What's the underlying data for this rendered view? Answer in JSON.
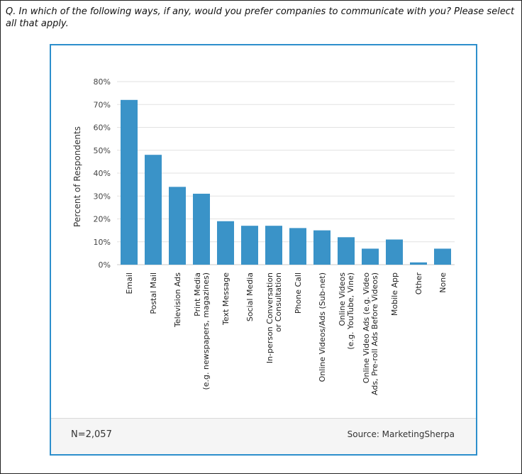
{
  "question": "Q. In which of the following ways, if any, would you prefer companies to communicate with you? Please select all that apply.",
  "footer": {
    "sample": "N=2,057",
    "source": "Source: MarketingSherpa"
  },
  "colors": {
    "bar": "#3a93c8",
    "border": "#2d8fcc",
    "grid": "#e2e2e2"
  },
  "chart_data": {
    "type": "bar",
    "title": "",
    "xlabel": "",
    "ylabel": "Percent of Respondents",
    "ylim": [
      0,
      80
    ],
    "yticks": [
      "0%",
      "10%",
      "20%",
      "30%",
      "40%",
      "50%",
      "60%",
      "70%",
      "80%"
    ],
    "categories": [
      [
        "Email"
      ],
      [
        "Postal Mail"
      ],
      [
        "Television Ads"
      ],
      [
        "Print Media",
        "(e.g. newspapers, magazines)"
      ],
      [
        "Text Message"
      ],
      [
        "Social Media"
      ],
      [
        "In-person Conversation",
        "or Consultation"
      ],
      [
        "Phone Call"
      ],
      [
        "Online Videos/Ads (Sub-net)"
      ],
      [
        "Online Videos",
        "(e.g. YouTube, Vine)"
      ],
      [
        "Online Video Ads (e.g. Video",
        "Ads, Pre-roll Ads Before Videos)"
      ],
      [
        "Mobile App"
      ],
      [
        "Other"
      ],
      [
        "None"
      ]
    ],
    "values": [
      72,
      48,
      34,
      31,
      19,
      17,
      17,
      16,
      15,
      12,
      7,
      11,
      1,
      7
    ]
  }
}
